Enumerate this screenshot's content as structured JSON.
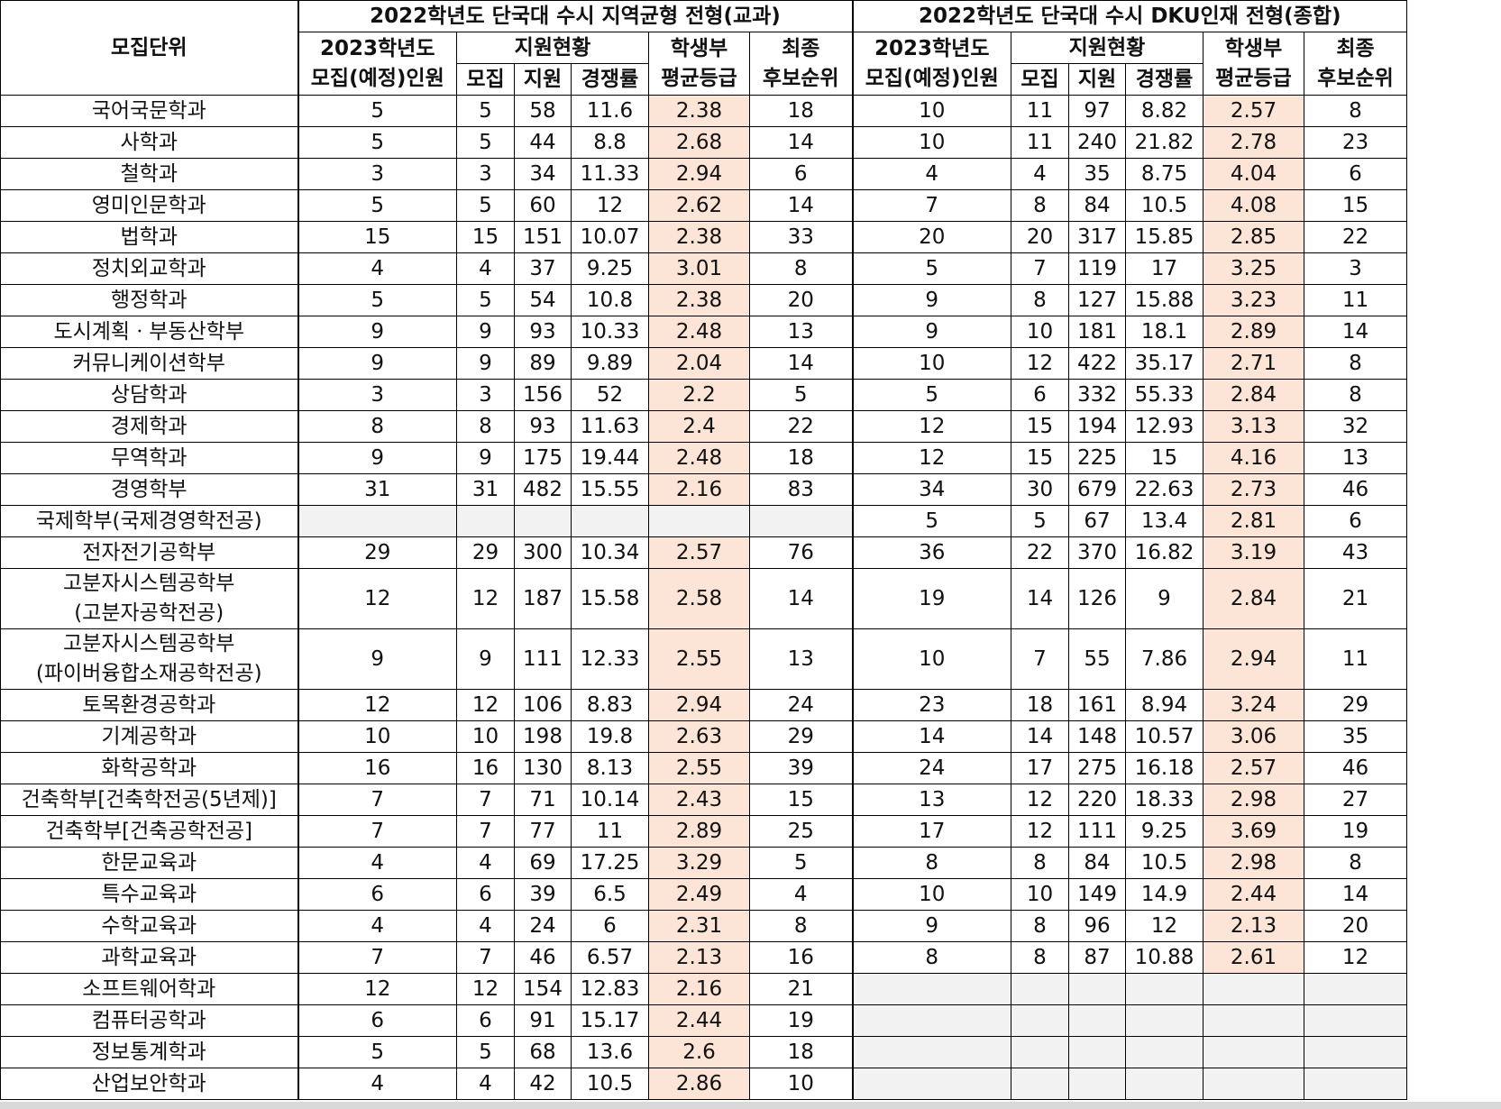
{
  "colors": {
    "highlight": "#fce4d6",
    "empty": "#f2f2f2",
    "border": "#000000"
  },
  "header": {
    "unit": "모집단위",
    "group1_title": "2022학년도 단국대 수시 지역균형 전형(교과)",
    "group2_title": "2022학년도 단국대 수시 DKU인재 전형(종합)",
    "quota_line1": "2023학년도",
    "quota_line2": "모집(예정)인원",
    "status": "지원현황",
    "grade_line1": "학생부",
    "grade_line2": "평균등급",
    "rank_line1": "최종",
    "rank_line2": "후보순위",
    "recruit": "모집",
    "apply": "지원",
    "ratio": "경쟁률"
  },
  "rows": [
    {
      "name": [
        "국어국문학과"
      ],
      "a": [
        "5",
        "5",
        "58",
        "11.6",
        "2.38",
        "18"
      ],
      "b": [
        "10",
        "11",
        "97",
        "8.82",
        "2.57",
        "8"
      ]
    },
    {
      "name": [
        "사학과"
      ],
      "a": [
        "5",
        "5",
        "44",
        "8.8",
        "2.68",
        "14"
      ],
      "b": [
        "10",
        "11",
        "240",
        "21.82",
        "2.78",
        "23"
      ]
    },
    {
      "name": [
        "철학과"
      ],
      "a": [
        "3",
        "3",
        "34",
        "11.33",
        "2.94",
        "6"
      ],
      "b": [
        "4",
        "4",
        "35",
        "8.75",
        "4.04",
        "6"
      ]
    },
    {
      "name": [
        "영미인문학과"
      ],
      "a": [
        "5",
        "5",
        "60",
        "12",
        "2.62",
        "14"
      ],
      "b": [
        "7",
        "8",
        "84",
        "10.5",
        "4.08",
        "15"
      ]
    },
    {
      "name": [
        "법학과"
      ],
      "a": [
        "15",
        "15",
        "151",
        "10.07",
        "2.38",
        "33"
      ],
      "b": [
        "20",
        "20",
        "317",
        "15.85",
        "2.85",
        "22"
      ]
    },
    {
      "name": [
        "정치외교학과"
      ],
      "a": [
        "4",
        "4",
        "37",
        "9.25",
        "3.01",
        "8"
      ],
      "b": [
        "5",
        "7",
        "119",
        "17",
        "3.25",
        "3"
      ]
    },
    {
      "name": [
        "행정학과"
      ],
      "a": [
        "5",
        "5",
        "54",
        "10.8",
        "2.38",
        "20"
      ],
      "b": [
        "9",
        "8",
        "127",
        "15.88",
        "3.23",
        "11"
      ]
    },
    {
      "name": [
        "도시계획ㆍ부동산학부"
      ],
      "a": [
        "9",
        "9",
        "93",
        "10.33",
        "2.48",
        "13"
      ],
      "b": [
        "9",
        "10",
        "181",
        "18.1",
        "2.89",
        "14"
      ]
    },
    {
      "name": [
        "커뮤니케이션학부"
      ],
      "a": [
        "9",
        "9",
        "89",
        "9.89",
        "2.04",
        "14"
      ],
      "b": [
        "10",
        "12",
        "422",
        "35.17",
        "2.71",
        "8"
      ]
    },
    {
      "name": [
        "상담학과"
      ],
      "a": [
        "3",
        "3",
        "156",
        "52",
        "2.2",
        "5"
      ],
      "b": [
        "5",
        "6",
        "332",
        "55.33",
        "2.84",
        "8"
      ]
    },
    {
      "name": [
        "경제학과"
      ],
      "a": [
        "8",
        "8",
        "93",
        "11.63",
        "2.4",
        "22"
      ],
      "b": [
        "12",
        "15",
        "194",
        "12.93",
        "3.13",
        "32"
      ]
    },
    {
      "name": [
        "무역학과"
      ],
      "a": [
        "9",
        "9",
        "175",
        "19.44",
        "2.48",
        "18"
      ],
      "b": [
        "12",
        "15",
        "225",
        "15",
        "4.16",
        "13"
      ]
    },
    {
      "name": [
        "경영학부"
      ],
      "a": [
        "31",
        "31",
        "482",
        "15.55",
        "2.16",
        "83"
      ],
      "b": [
        "34",
        "30",
        "679",
        "22.63",
        "2.73",
        "46"
      ]
    },
    {
      "name": [
        "국제학부(국제경영학전공)"
      ],
      "a": null,
      "b": [
        "5",
        "5",
        "67",
        "13.4",
        "2.81",
        "6"
      ]
    },
    {
      "name": [
        "전자전기공학부"
      ],
      "a": [
        "29",
        "29",
        "300",
        "10.34",
        "2.57",
        "76"
      ],
      "b": [
        "36",
        "22",
        "370",
        "16.82",
        "3.19",
        "43"
      ]
    },
    {
      "name": [
        "고분자시스템공학부",
        "(고분자공학전공)"
      ],
      "a": [
        "12",
        "12",
        "187",
        "15.58",
        "2.58",
        "14"
      ],
      "b": [
        "19",
        "14",
        "126",
        "9",
        "2.84",
        "21"
      ]
    },
    {
      "name": [
        "고분자시스템공학부",
        "(파이버융합소재공학전공)"
      ],
      "a": [
        "9",
        "9",
        "111",
        "12.33",
        "2.55",
        "13"
      ],
      "b": [
        "10",
        "7",
        "55",
        "7.86",
        "2.94",
        "11"
      ]
    },
    {
      "name": [
        "토목환경공학과"
      ],
      "a": [
        "12",
        "12",
        "106",
        "8.83",
        "2.94",
        "24"
      ],
      "b": [
        "23",
        "18",
        "161",
        "8.94",
        "3.24",
        "29"
      ]
    },
    {
      "name": [
        "기계공학과"
      ],
      "a": [
        "10",
        "10",
        "198",
        "19.8",
        "2.63",
        "29"
      ],
      "b": [
        "14",
        "14",
        "148",
        "10.57",
        "3.06",
        "35"
      ]
    },
    {
      "name": [
        "화학공학과"
      ],
      "a": [
        "16",
        "16",
        "130",
        "8.13",
        "2.55",
        "39"
      ],
      "b": [
        "24",
        "17",
        "275",
        "16.18",
        "2.57",
        "46"
      ]
    },
    {
      "name": [
        "건축학부[건축학전공(5년제)]"
      ],
      "a": [
        "7",
        "7",
        "71",
        "10.14",
        "2.43",
        "15"
      ],
      "b": [
        "13",
        "12",
        "220",
        "18.33",
        "2.98",
        "27"
      ]
    },
    {
      "name": [
        "건축학부[건축공학전공]"
      ],
      "a": [
        "7",
        "7",
        "77",
        "11",
        "2.89",
        "25"
      ],
      "b": [
        "17",
        "12",
        "111",
        "9.25",
        "3.69",
        "19"
      ]
    },
    {
      "name": [
        "한문교육과"
      ],
      "a": [
        "4",
        "4",
        "69",
        "17.25",
        "3.29",
        "5"
      ],
      "b": [
        "8",
        "8",
        "84",
        "10.5",
        "2.98",
        "8"
      ]
    },
    {
      "name": [
        "특수교육과"
      ],
      "a": [
        "6",
        "6",
        "39",
        "6.5",
        "2.49",
        "4"
      ],
      "b": [
        "10",
        "10",
        "149",
        "14.9",
        "2.44",
        "14"
      ]
    },
    {
      "name": [
        "수학교육과"
      ],
      "a": [
        "4",
        "4",
        "24",
        "6",
        "2.31",
        "8"
      ],
      "b": [
        "9",
        "8",
        "96",
        "12",
        "2.13",
        "20"
      ]
    },
    {
      "name": [
        "과학교육과"
      ],
      "a": [
        "7",
        "7",
        "46",
        "6.57",
        "2.13",
        "16"
      ],
      "b": [
        "8",
        "8",
        "87",
        "10.88",
        "2.61",
        "12"
      ]
    },
    {
      "name": [
        "소프트웨어학과"
      ],
      "a": [
        "12",
        "12",
        "154",
        "12.83",
        "2.16",
        "21"
      ],
      "b": null
    },
    {
      "name": [
        "컴퓨터공학과"
      ],
      "a": [
        "6",
        "6",
        "91",
        "15.17",
        "2.44",
        "19"
      ],
      "b": null
    },
    {
      "name": [
        "정보통계학과"
      ],
      "a": [
        "5",
        "5",
        "68",
        "13.6",
        "2.6",
        "18"
      ],
      "b": null
    },
    {
      "name": [
        "산업보안학과"
      ],
      "a": [
        "4",
        "4",
        "42",
        "10.5",
        "2.86",
        "10"
      ],
      "b": null
    }
  ]
}
